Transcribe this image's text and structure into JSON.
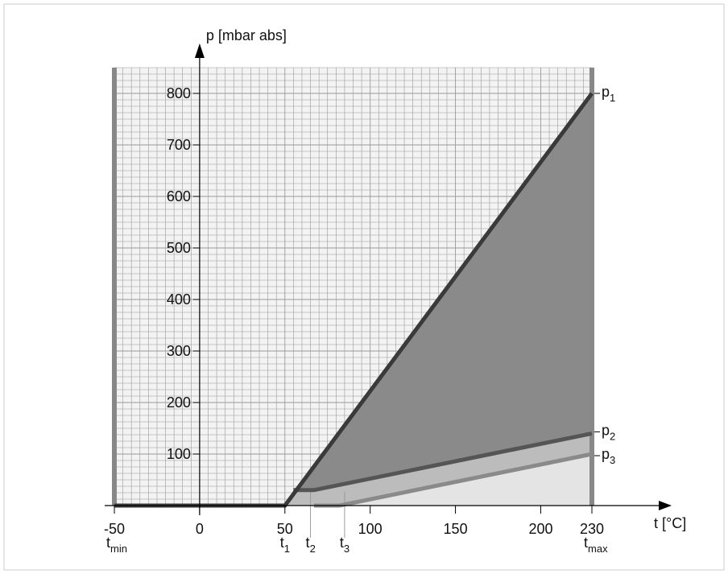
{
  "chart_data": {
    "type": "area",
    "title": "",
    "ylabel": "p [mbar abs]",
    "xlabel": "t [°C]",
    "xlim": [
      -50,
      230
    ],
    "ylim": [
      0,
      800
    ],
    "x_ticks": [
      {
        "value": -50,
        "label": "-50"
      },
      {
        "value": 0,
        "label": "0"
      },
      {
        "value": 50,
        "label": "50"
      },
      {
        "value": 100,
        "label": "100"
      },
      {
        "value": 150,
        "label": "150"
      },
      {
        "value": 200,
        "label": "200"
      },
      {
        "value": 230,
        "label": "230"
      }
    ],
    "y_ticks": [
      {
        "value": 100,
        "label": "100"
      },
      {
        "value": 200,
        "label": "200"
      },
      {
        "value": 300,
        "label": "300"
      },
      {
        "value": 400,
        "label": "400"
      },
      {
        "value": 500,
        "label": "500"
      },
      {
        "value": 600,
        "label": "600"
      },
      {
        "value": 700,
        "label": "700"
      },
      {
        "value": 800,
        "label": "800"
      }
    ],
    "grid": true,
    "x_markers": [
      {
        "value": -50,
        "base": "t",
        "sub": "min"
      },
      {
        "value": 50,
        "base": "t",
        "sub": "1"
      },
      {
        "value": 65,
        "base": "t",
        "sub": "2"
      },
      {
        "value": 85,
        "base": "t",
        "sub": "3"
      },
      {
        "value": 230,
        "base": "t",
        "sub": "max"
      }
    ],
    "series": [
      {
        "name": "p1",
        "label_base": "p",
        "label_sub": "1",
        "x": [
          -50,
          50,
          230
        ],
        "y": [
          0,
          0,
          800
        ],
        "color": "#3a3a3a",
        "fill": "#8a8a8a"
      },
      {
        "name": "p2",
        "label_base": "p",
        "label_sub": "2",
        "x": [
          55,
          67,
          230
        ],
        "y": [
          30,
          30,
          140
        ],
        "color": "#555555",
        "fill": "#bcbcbc"
      },
      {
        "name": "p3",
        "label_base": "p",
        "label_sub": "3",
        "x": [
          67,
          82,
          230
        ],
        "y": [
          0,
          0,
          100
        ],
        "color": "#8a8a8a",
        "fill": "#e4e4e4"
      }
    ],
    "colors": {
      "grid": "#9a9a9a",
      "edge_bar": "#888888",
      "axis": "#000000",
      "frame": "#cccccc"
    }
  }
}
